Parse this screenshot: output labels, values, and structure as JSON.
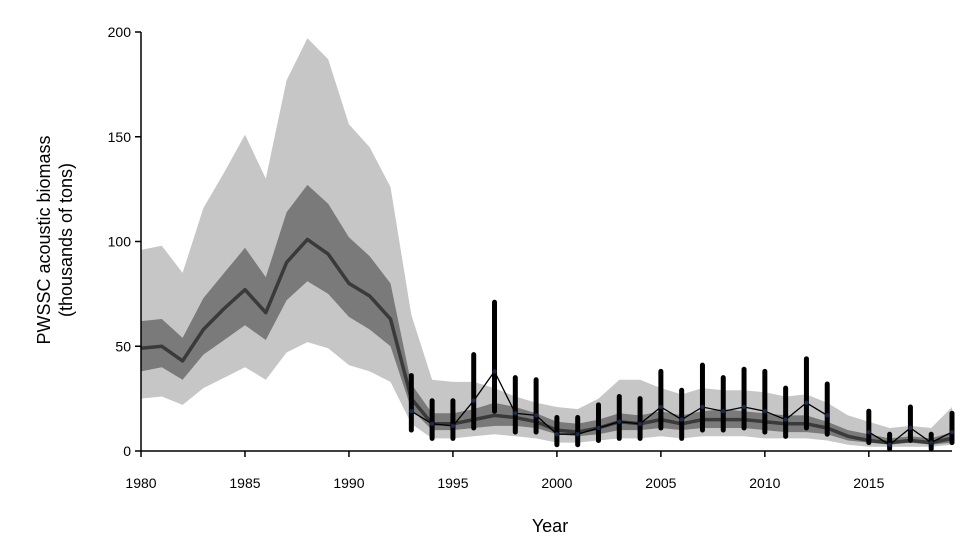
{
  "chart_data": {
    "type": "line",
    "title": "",
    "xlabel": "Year",
    "ylabel_line1": "PWSSC acoustic biomass",
    "ylabel_line2": "(thousands of tons)",
    "xlim": [
      1980,
      2019
    ],
    "ylim": [
      0,
      200
    ],
    "x_ticks": [
      1980,
      1985,
      1990,
      1995,
      2000,
      2005,
      2010,
      2015
    ],
    "y_ticks": [
      0,
      50,
      100,
      150,
      200
    ],
    "grid": false,
    "legend": "none",
    "colors": {
      "outer_band": "#c6c6c6",
      "inner_band": "#7a7a7a",
      "median_line": "#3a3a3a",
      "observed": "#000000",
      "observed_point": "#1a2a4a"
    },
    "estimate": {
      "x": [
        1980,
        1981,
        1982,
        1983,
        1984,
        1985,
        1986,
        1987,
        1988,
        1989,
        1990,
        1991,
        1992,
        1993,
        1994,
        1995,
        1996,
        1997,
        1998,
        1999,
        2000,
        2001,
        2002,
        2003,
        2004,
        2005,
        2006,
        2007,
        2008,
        2009,
        2010,
        2011,
        2012,
        2013,
        2014,
        2015,
        2016,
        2017,
        2018,
        2019
      ],
      "median": [
        49,
        50,
        43,
        58,
        68,
        77,
        66,
        90,
        101,
        94,
        80,
        74,
        63,
        25,
        13,
        13,
        15,
        17,
        16,
        14,
        10,
        9,
        11,
        14,
        13,
        15,
        13,
        15,
        15,
        15,
        14,
        13,
        13,
        11,
        7,
        5,
        4,
        5,
        4,
        6
      ],
      "inner_lower": [
        38,
        40,
        34,
        46,
        53,
        60,
        53,
        72,
        81,
        75,
        64,
        58,
        50,
        20,
        10,
        10,
        11,
        12,
        12,
        11,
        8,
        7,
        8,
        10,
        10,
        11,
        10,
        11,
        11,
        11,
        10,
        9,
        9,
        8,
        5,
        4,
        3,
        4,
        3,
        4
      ],
      "inner_upper": [
        62,
        63,
        54,
        73,
        85,
        97,
        83,
        114,
        127,
        118,
        102,
        93,
        80,
        32,
        18,
        18,
        20,
        23,
        21,
        18,
        14,
        13,
        15,
        18,
        17,
        19,
        17,
        19,
        20,
        19,
        18,
        17,
        17,
        14,
        10,
        8,
        6,
        7,
        6,
        9
      ],
      "outer_lower": [
        25,
        26,
        22,
        30,
        35,
        40,
        34,
        47,
        52,
        49,
        41,
        38,
        33,
        13,
        6,
        6,
        7,
        8,
        7,
        6,
        4,
        4,
        5,
        6,
        6,
        7,
        6,
        7,
        7,
        7,
        6,
        6,
        6,
        5,
        3,
        2,
        2,
        2,
        2,
        3
      ],
      "outer_upper": [
        96,
        98,
        85,
        116,
        133,
        151,
        130,
        177,
        197,
        187,
        156,
        145,
        126,
        65,
        34,
        33,
        33,
        30,
        26,
        23,
        21,
        20,
        25,
        34,
        34,
        30,
        27,
        30,
        29,
        29,
        28,
        26,
        27,
        23,
        17,
        14,
        11,
        12,
        11,
        21
      ]
    },
    "observed": {
      "x": [
        1993,
        1994,
        1995,
        1996,
        1997,
        1998,
        1999,
        2000,
        2001,
        2002,
        2003,
        2004,
        2005,
        2006,
        2007,
        2008,
        2009,
        2010,
        2011,
        2012,
        2013,
        2015,
        2016,
        2017,
        2018,
        2019
      ],
      "values": [
        19,
        13,
        12,
        24,
        38,
        18,
        17,
        8,
        8,
        11,
        14,
        13,
        21,
        15,
        21,
        19,
        21,
        19,
        15,
        23,
        17,
        9,
        3,
        11,
        4,
        9
      ],
      "lower": [
        10,
        6,
        6,
        11,
        19,
        9,
        9,
        3,
        3,
        5,
        6,
        6,
        11,
        6,
        10,
        10,
        11,
        9,
        7,
        11,
        8,
        4,
        1,
        5,
        1,
        4
      ],
      "upper": [
        36,
        24,
        24,
        46,
        71,
        35,
        34,
        16,
        16,
        22,
        26,
        25,
        38,
        29,
        41,
        35,
        39,
        38,
        30,
        44,
        32,
        19,
        8,
        21,
        8,
        18
      ]
    }
  }
}
